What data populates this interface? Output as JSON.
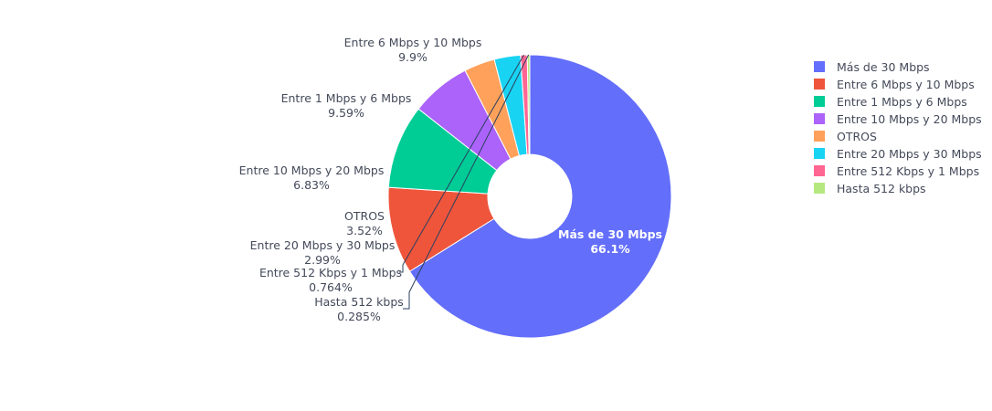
{
  "chart_data": {
    "type": "pie",
    "hole": true,
    "legend_position": "top-right",
    "slices": [
      {
        "label": "Más de 30 Mbps",
        "value": 66.1,
        "percent_text": "66.1%",
        "color": "#636efa"
      },
      {
        "label": "Entre 6 Mbps y 10 Mbps",
        "value": 9.9,
        "percent_text": "9.9%",
        "color": "#ef553b"
      },
      {
        "label": "Entre 1 Mbps y 6 Mbps",
        "value": 9.59,
        "percent_text": "9.59%",
        "color": "#00cc96"
      },
      {
        "label": "Entre 10 Mbps y 20 Mbps",
        "value": 6.83,
        "percent_text": "6.83%",
        "color": "#ab63fa"
      },
      {
        "label": "OTROS",
        "value": 3.52,
        "percent_text": "3.52%",
        "color": "#ffa15a"
      },
      {
        "label": "Entre 20 Mbps y 30 Mbps",
        "value": 2.99,
        "percent_text": "2.99%",
        "color": "#19d3f3"
      },
      {
        "label": "Entre 512 Kbps y 1 Mbps",
        "value": 0.764,
        "percent_text": "0.764%",
        "color": "#ff6692"
      },
      {
        "label": "Hasta 512 kbps",
        "value": 0.285,
        "percent_text": "0.285%",
        "color": "#b6e880"
      }
    ]
  }
}
